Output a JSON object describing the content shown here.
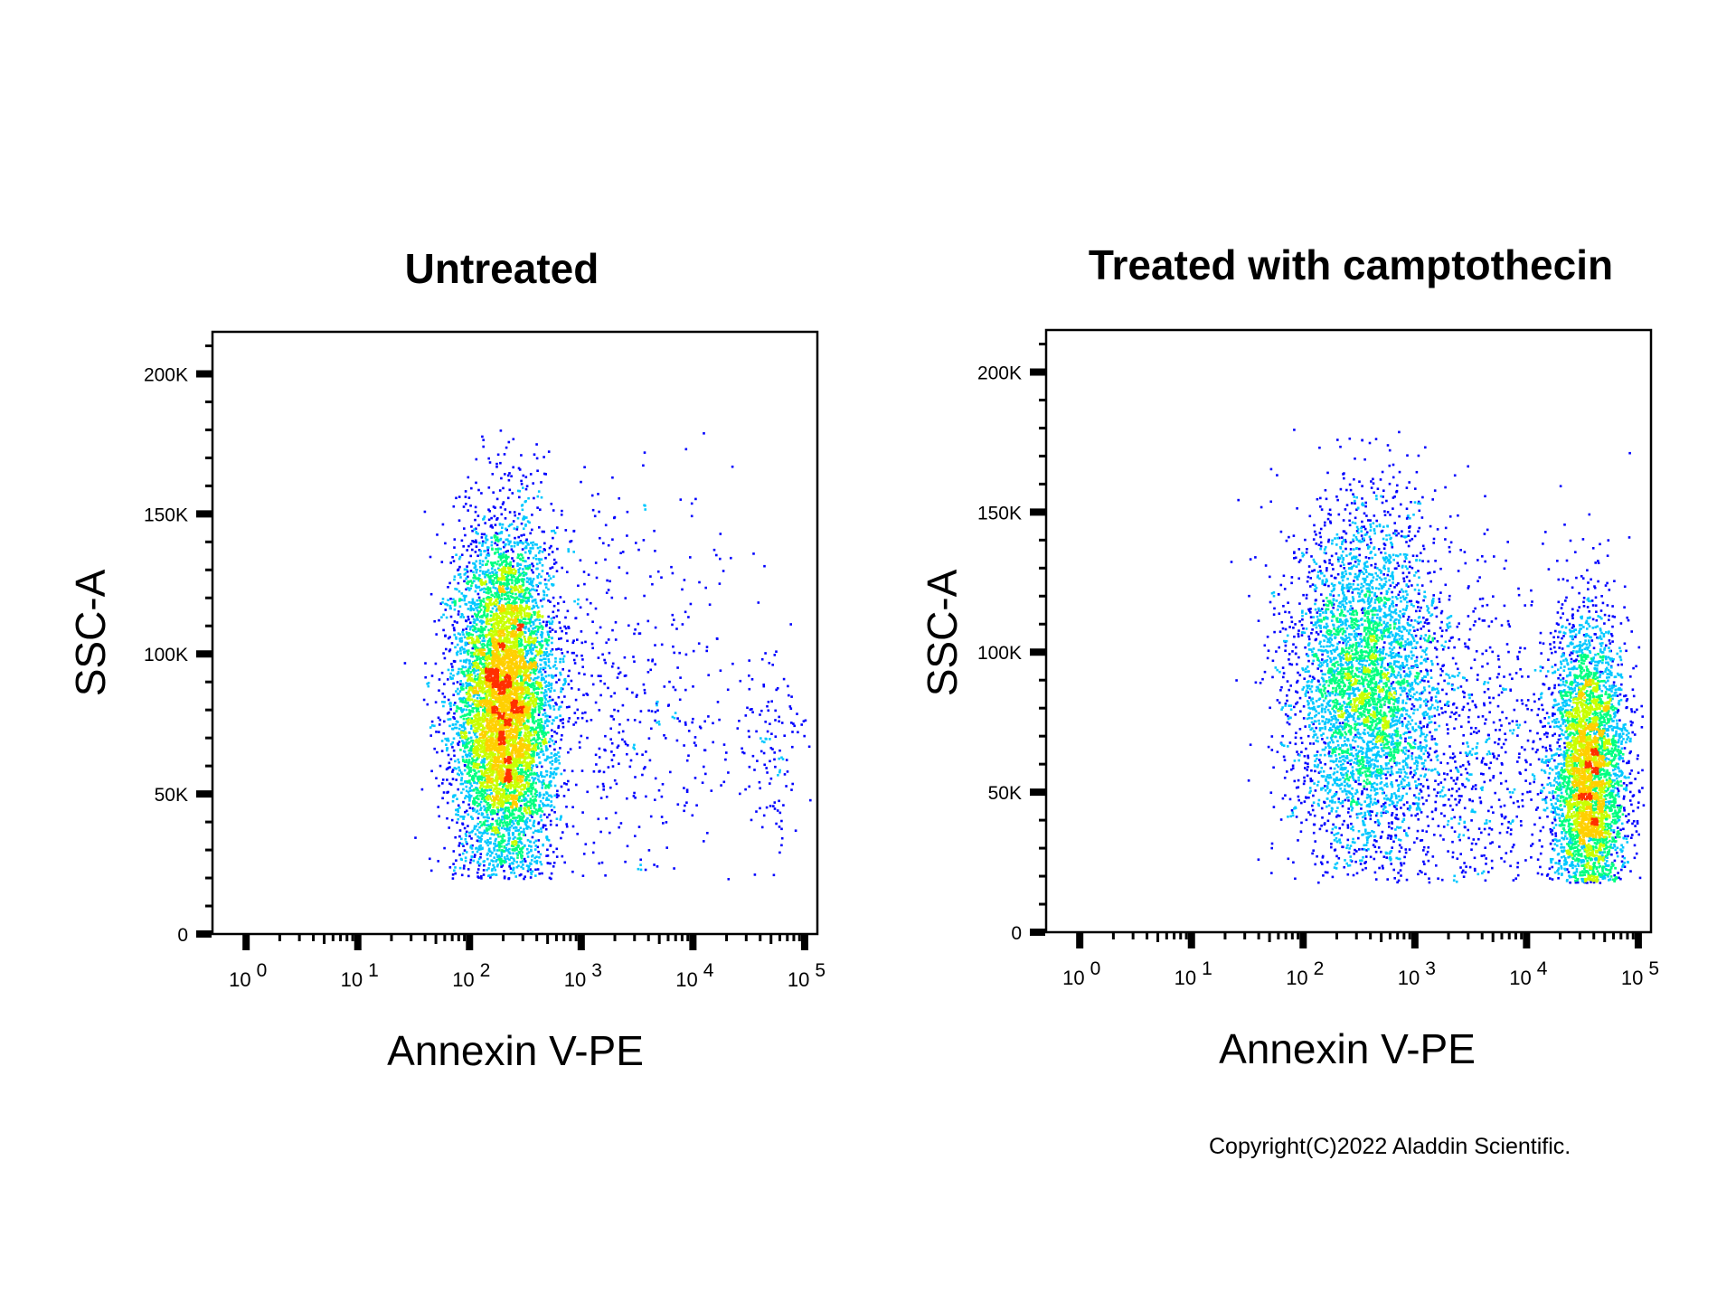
{
  "chart_data": [
    {
      "type": "scatter",
      "title": "Untreated",
      "xlabel": "Annexin V-PE",
      "ylabel": "SSC-A",
      "x_scale": "log",
      "xlim": [
        0.5,
        130000
      ],
      "ylim": [
        0,
        215000
      ],
      "x_ticks": [
        {
          "base": "10",
          "exp": "0"
        },
        {
          "base": "10",
          "exp": "1"
        },
        {
          "base": "10",
          "exp": "2"
        },
        {
          "base": "10",
          "exp": "3"
        },
        {
          "base": "10",
          "exp": "4"
        },
        {
          "base": "10",
          "exp": "5"
        }
      ],
      "y_ticks": [
        {
          "value": 0,
          "label": "0"
        },
        {
          "value": 50000,
          "label": "50K"
        },
        {
          "value": 100000,
          "label": "100K"
        },
        {
          "value": 150000,
          "label": "150K"
        },
        {
          "value": 200000,
          "label": "200K"
        }
      ],
      "density_colormap": [
        "#0000ff",
        "#00c8ff",
        "#00ff80",
        "#c8ff00",
        "#ffd000",
        "#ff3000"
      ],
      "populations": [
        {
          "name_hidden": true,
          "count": 7000,
          "x_center_log10": 2.3,
          "x_spread_log10": 0.22,
          "y_center": 82000,
          "y_spread": 32000,
          "y_min": 20000,
          "y_max": 182000
        },
        {
          "name_hidden": true,
          "count": 500,
          "x_center_log10": 3.4,
          "x_spread_log10": 0.6,
          "y_center": 80000,
          "y_spread": 40000,
          "y_min": 20000,
          "y_max": 180000
        },
        {
          "name_hidden": true,
          "count": 120,
          "x_center_log10": 4.7,
          "x_spread_log10": 0.15,
          "y_center": 65000,
          "y_spread": 20000,
          "y_min": 20000,
          "y_max": 110000
        }
      ],
      "grid": false,
      "legend": "none"
    },
    {
      "type": "scatter",
      "title": "Treated with camptothecin",
      "xlabel": "Annexin V-PE",
      "ylabel": "SSC-A",
      "x_scale": "log",
      "xlim": [
        0.5,
        130000
      ],
      "ylim": [
        0,
        215000
      ],
      "x_ticks": [
        {
          "base": "10",
          "exp": "0"
        },
        {
          "base": "10",
          "exp": "1"
        },
        {
          "base": "10",
          "exp": "2"
        },
        {
          "base": "10",
          "exp": "3"
        },
        {
          "base": "10",
          "exp": "4"
        },
        {
          "base": "10",
          "exp": "5"
        }
      ],
      "y_ticks": [
        {
          "value": 0,
          "label": "0"
        },
        {
          "value": 50000,
          "label": "50K"
        },
        {
          "value": 100000,
          "label": "100K"
        },
        {
          "value": 150000,
          "label": "150K"
        },
        {
          "value": 200000,
          "label": "200K"
        }
      ],
      "density_colormap": [
        "#0000ff",
        "#00c8ff",
        "#00ff80",
        "#c8ff00",
        "#ffd000",
        "#ff3000"
      ],
      "populations": [
        {
          "name_hidden": true,
          "count": 4200,
          "x_center_log10": 2.55,
          "x_spread_log10": 0.33,
          "y_center": 88000,
          "y_spread": 32000,
          "y_min": 18000,
          "y_max": 180000
        },
        {
          "name_hidden": true,
          "count": 3800,
          "x_center_log10": 4.55,
          "x_spread_log10": 0.17,
          "y_center": 55000,
          "y_spread": 28000,
          "y_min": 18000,
          "y_max": 160000
        },
        {
          "name_hidden": true,
          "count": 700,
          "x_center_log10": 3.5,
          "x_spread_log10": 0.45,
          "y_center": 60000,
          "y_spread": 35000,
          "y_min": 18000,
          "y_max": 175000
        }
      ],
      "grid": false,
      "legend": "none"
    }
  ],
  "footer": {
    "copyright": "Copyright(C)2022 Aladdin Scientific."
  }
}
